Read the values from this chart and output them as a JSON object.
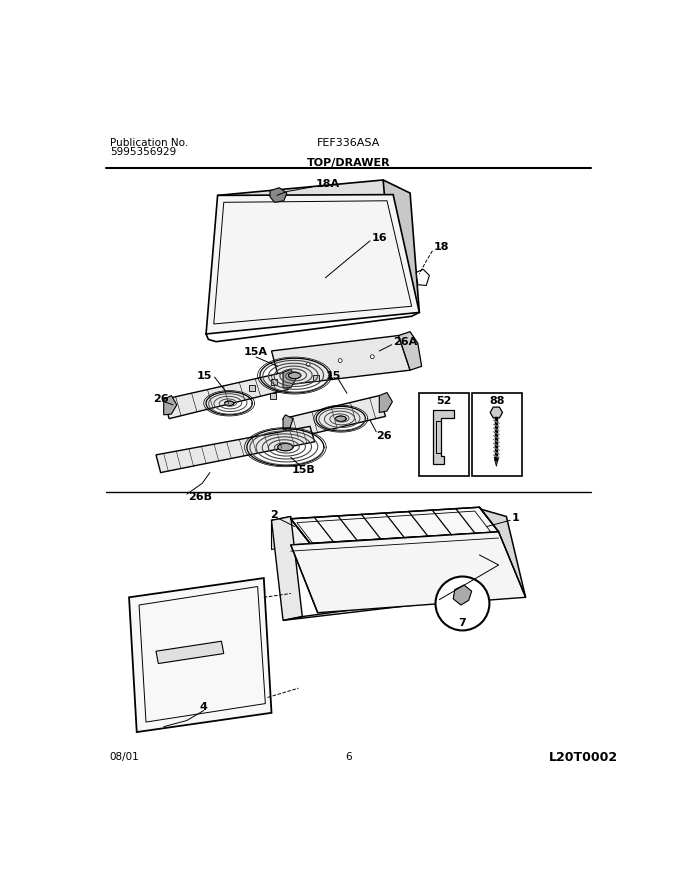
{
  "title": "FEF336ASA",
  "subtitle": "TOP/DRAWER",
  "pub_no_label": "Publication No.",
  "pub_no": "5995356929",
  "date": "08/01",
  "page": "6",
  "catalog_no": "L20T0002",
  "bg_color": "#ffffff",
  "line_color": "#000000"
}
